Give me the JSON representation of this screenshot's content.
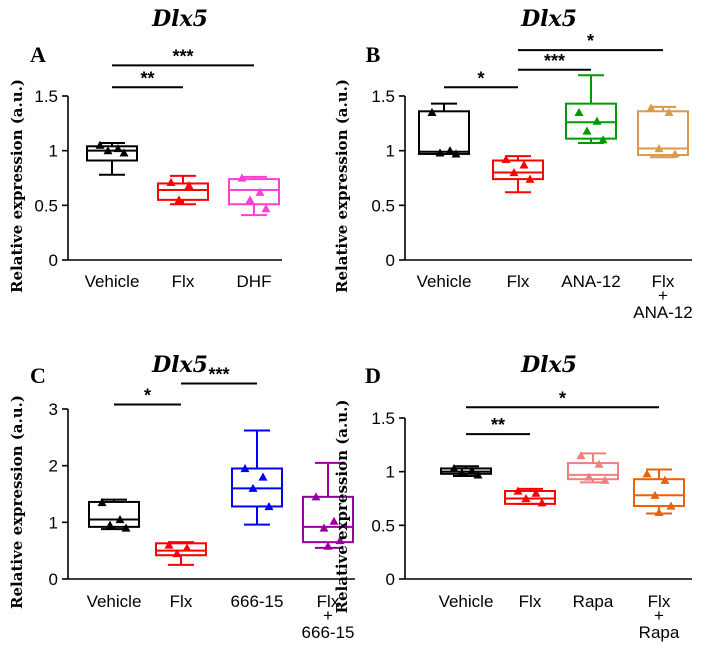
{
  "chart_data": [
    {
      "panel": "A",
      "type": "box",
      "title": "Dlx5",
      "ylabel": "Relative expression (a.u.)",
      "ylim": [
        0,
        1.5
      ],
      "yticks": [
        0,
        0.5,
        1,
        1.5
      ],
      "ytick_labels": [
        "0",
        "0.5",
        "1",
        "1.5"
      ],
      "categories": [
        {
          "label": [
            "Vehicle"
          ],
          "color": "#000000",
          "min": 0.78,
          "q1": 0.91,
          "median": 1.0,
          "q3": 1.04,
          "max": 1.07,
          "points": [
            1.05,
            1.02,
            1.0,
            0.98
          ]
        },
        {
          "label": [
            "Flx"
          ],
          "color": "#ff0000",
          "min": 0.51,
          "q1": 0.55,
          "median": 0.64,
          "q3": 0.7,
          "max": 0.77,
          "points": [
            0.71,
            0.68,
            0.55
          ]
        },
        {
          "label": [
            "DHF"
          ],
          "color": "#ff3fd2",
          "min": 0.41,
          "q1": 0.51,
          "median": 0.64,
          "q3": 0.74,
          "max": 0.76,
          "points": [
            0.75,
            0.62,
            0.55,
            0.47
          ]
        }
      ],
      "significance": [
        {
          "from": 0,
          "to": 1,
          "label": "**",
          "level": 1.58
        },
        {
          "from": 0,
          "to": 2,
          "label": "***",
          "level": 1.78
        }
      ]
    },
    {
      "panel": "B",
      "type": "box",
      "title": "Dlx5",
      "ylabel": "Relative expression (a.u.)",
      "ylim": [
        0,
        1.5
      ],
      "yticks": [
        0,
        0.5,
        1,
        1.5
      ],
      "ytick_labels": [
        "0",
        "0.5",
        "1",
        "1.5"
      ],
      "categories": [
        {
          "label": [
            "Vehicle"
          ],
          "color": "#000000",
          "min": 0.97,
          "q1": 0.97,
          "median": 0.99,
          "q3": 1.36,
          "max": 1.43,
          "points": [
            1.35,
            1.0,
            0.98,
            0.97
          ]
        },
        {
          "label": [
            "Flx"
          ],
          "color": "#ff0000",
          "min": 0.62,
          "q1": 0.74,
          "median": 0.8,
          "q3": 0.91,
          "max": 0.95,
          "points": [
            0.92,
            0.87,
            0.8,
            0.74
          ]
        },
        {
          "label": [
            "ANA-12"
          ],
          "color": "#009900",
          "min": 1.07,
          "q1": 1.11,
          "median": 1.26,
          "q3": 1.43,
          "max": 1.69,
          "points": [
            1.35,
            1.27,
            1.18,
            1.1
          ]
        },
        {
          "label": [
            "Flx",
            "+",
            "ANA-12"
          ],
          "color": "#d99a4a",
          "min": 0.94,
          "q1": 0.96,
          "median": 1.02,
          "q3": 1.36,
          "max": 1.4,
          "points": [
            1.39,
            1.35,
            1.02,
            0.97
          ]
        }
      ],
      "significance": [
        {
          "from": 0,
          "to": 1,
          "label": "*",
          "level": 1.58
        },
        {
          "from": 1,
          "to": 2,
          "label": "***",
          "level": 1.74
        },
        {
          "from": 1,
          "to": 3,
          "label": "*",
          "level": 1.92
        }
      ]
    },
    {
      "panel": "C",
      "type": "box",
      "title": "Dlx5",
      "ylabel": "Relative expression (a.u.)",
      "ylim": [
        0,
        3
      ],
      "yticks": [
        0,
        1,
        2,
        3
      ],
      "ytick_labels": [
        "0",
        "1",
        "2",
        "3"
      ],
      "categories": [
        {
          "label": [
            "Vehicle"
          ],
          "color": "#000000",
          "min": 0.88,
          "q1": 0.92,
          "median": 1.05,
          "q3": 1.36,
          "max": 1.4,
          "points": [
            1.35,
            1.05,
            0.95,
            0.9
          ]
        },
        {
          "label": [
            "Flx"
          ],
          "color": "#ff0000",
          "min": 0.25,
          "q1": 0.42,
          "median": 0.5,
          "q3": 0.63,
          "max": 0.65,
          "points": [
            0.6,
            0.55,
            0.45
          ]
        },
        {
          "label": [
            "666-15"
          ],
          "color": "#0000ff",
          "min": 0.96,
          "q1": 1.28,
          "median": 1.6,
          "q3": 1.95,
          "max": 2.62,
          "points": [
            1.95,
            1.8,
            1.6,
            1.28
          ]
        },
        {
          "label": [
            "Flx",
            "+",
            "666-15"
          ],
          "color": "#990099",
          "min": 0.55,
          "q1": 0.65,
          "median": 0.92,
          "q3": 1.45,
          "max": 2.05,
          "points": [
            1.45,
            1.02,
            0.9,
            0.68,
            0.58
          ]
        }
      ],
      "significance": [
        {
          "from": 0,
          "to": 1,
          "label": "*",
          "level": 3.08
        },
        {
          "from": 1,
          "to": 2,
          "label": "***",
          "level": 3.45
        }
      ]
    },
    {
      "panel": "D",
      "type": "box",
      "title": "Dlx5",
      "ylabel": "Relative expression (a.u.)",
      "ylim": [
        0,
        1.5
      ],
      "yticks": [
        0,
        0.5,
        1,
        1.5
      ],
      "ytick_labels": [
        "0",
        "0.5",
        "1",
        "1.5"
      ],
      "categories": [
        {
          "label": [
            "Vehicle"
          ],
          "color": "#000000",
          "min": 0.96,
          "q1": 0.98,
          "median": 1.0,
          "q3": 1.03,
          "max": 1.05,
          "points": [
            1.03,
            1.01,
            0.99,
            0.97
          ]
        },
        {
          "label": [
            "Flx"
          ],
          "color": "#ff0000",
          "min": 0.7,
          "q1": 0.7,
          "median": 0.75,
          "q3": 0.82,
          "max": 0.84,
          "points": [
            0.82,
            0.8,
            0.75,
            0.71
          ]
        },
        {
          "label": [
            "Rapa"
          ],
          "color": "#f08080",
          "min": 0.9,
          "q1": 0.93,
          "median": 0.97,
          "q3": 1.08,
          "max": 1.17,
          "points": [
            1.15,
            1.07,
            0.95,
            0.92
          ]
        },
        {
          "label": [
            "Flx",
            "+",
            "Rapa"
          ],
          "color": "#e8620a",
          "min": 0.61,
          "q1": 0.68,
          "median": 0.78,
          "q3": 0.93,
          "max": 1.02,
          "points": [
            0.98,
            0.92,
            0.78,
            0.68,
            0.62
          ]
        }
      ],
      "significance": [
        {
          "from": 0,
          "to": 1,
          "label": "**",
          "level": 1.35
        },
        {
          "from": 0,
          "to": 3,
          "label": "*",
          "level": 1.6
        }
      ]
    }
  ]
}
